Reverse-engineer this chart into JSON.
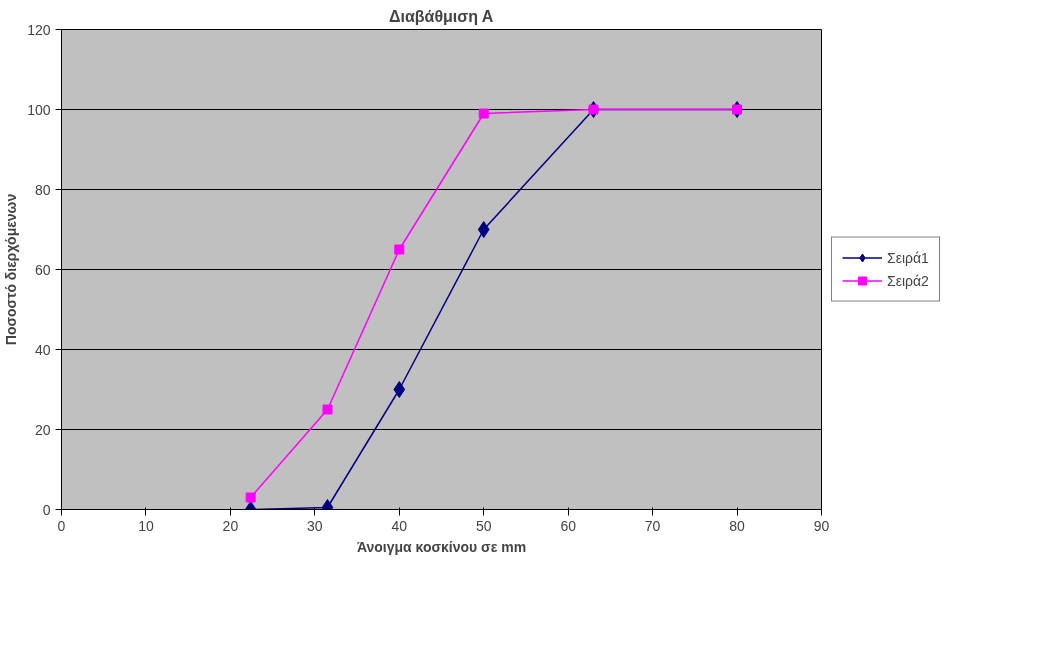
{
  "chart_data": {
    "type": "line",
    "title": "Διαβάθμιση Α",
    "xlabel": "Άνοιγμα κοσκίνου σε mm",
    "ylabel": "Ποσοστό διερχόμενων",
    "x": [
      22.4,
      31.5,
      40,
      50,
      63,
      80
    ],
    "series": [
      {
        "name": "Σειρά1",
        "color": "#000080",
        "marker": "diamond",
        "values": [
          0,
          0.5,
          30,
          70,
          100,
          100
        ]
      },
      {
        "name": "Σειρά2",
        "color": "#ff00ff",
        "marker": "square",
        "values": [
          3,
          25,
          65,
          99,
          100,
          100
        ]
      }
    ],
    "xlim": [
      0,
      90
    ],
    "xticks": [
      0,
      10,
      20,
      30,
      40,
      50,
      60,
      70,
      80,
      90
    ],
    "ylim": [
      0,
      120
    ],
    "yticks": [
      0,
      20,
      40,
      60,
      80,
      100,
      120
    ],
    "grid": "y",
    "legend": "right",
    "line_style": "solid"
  }
}
